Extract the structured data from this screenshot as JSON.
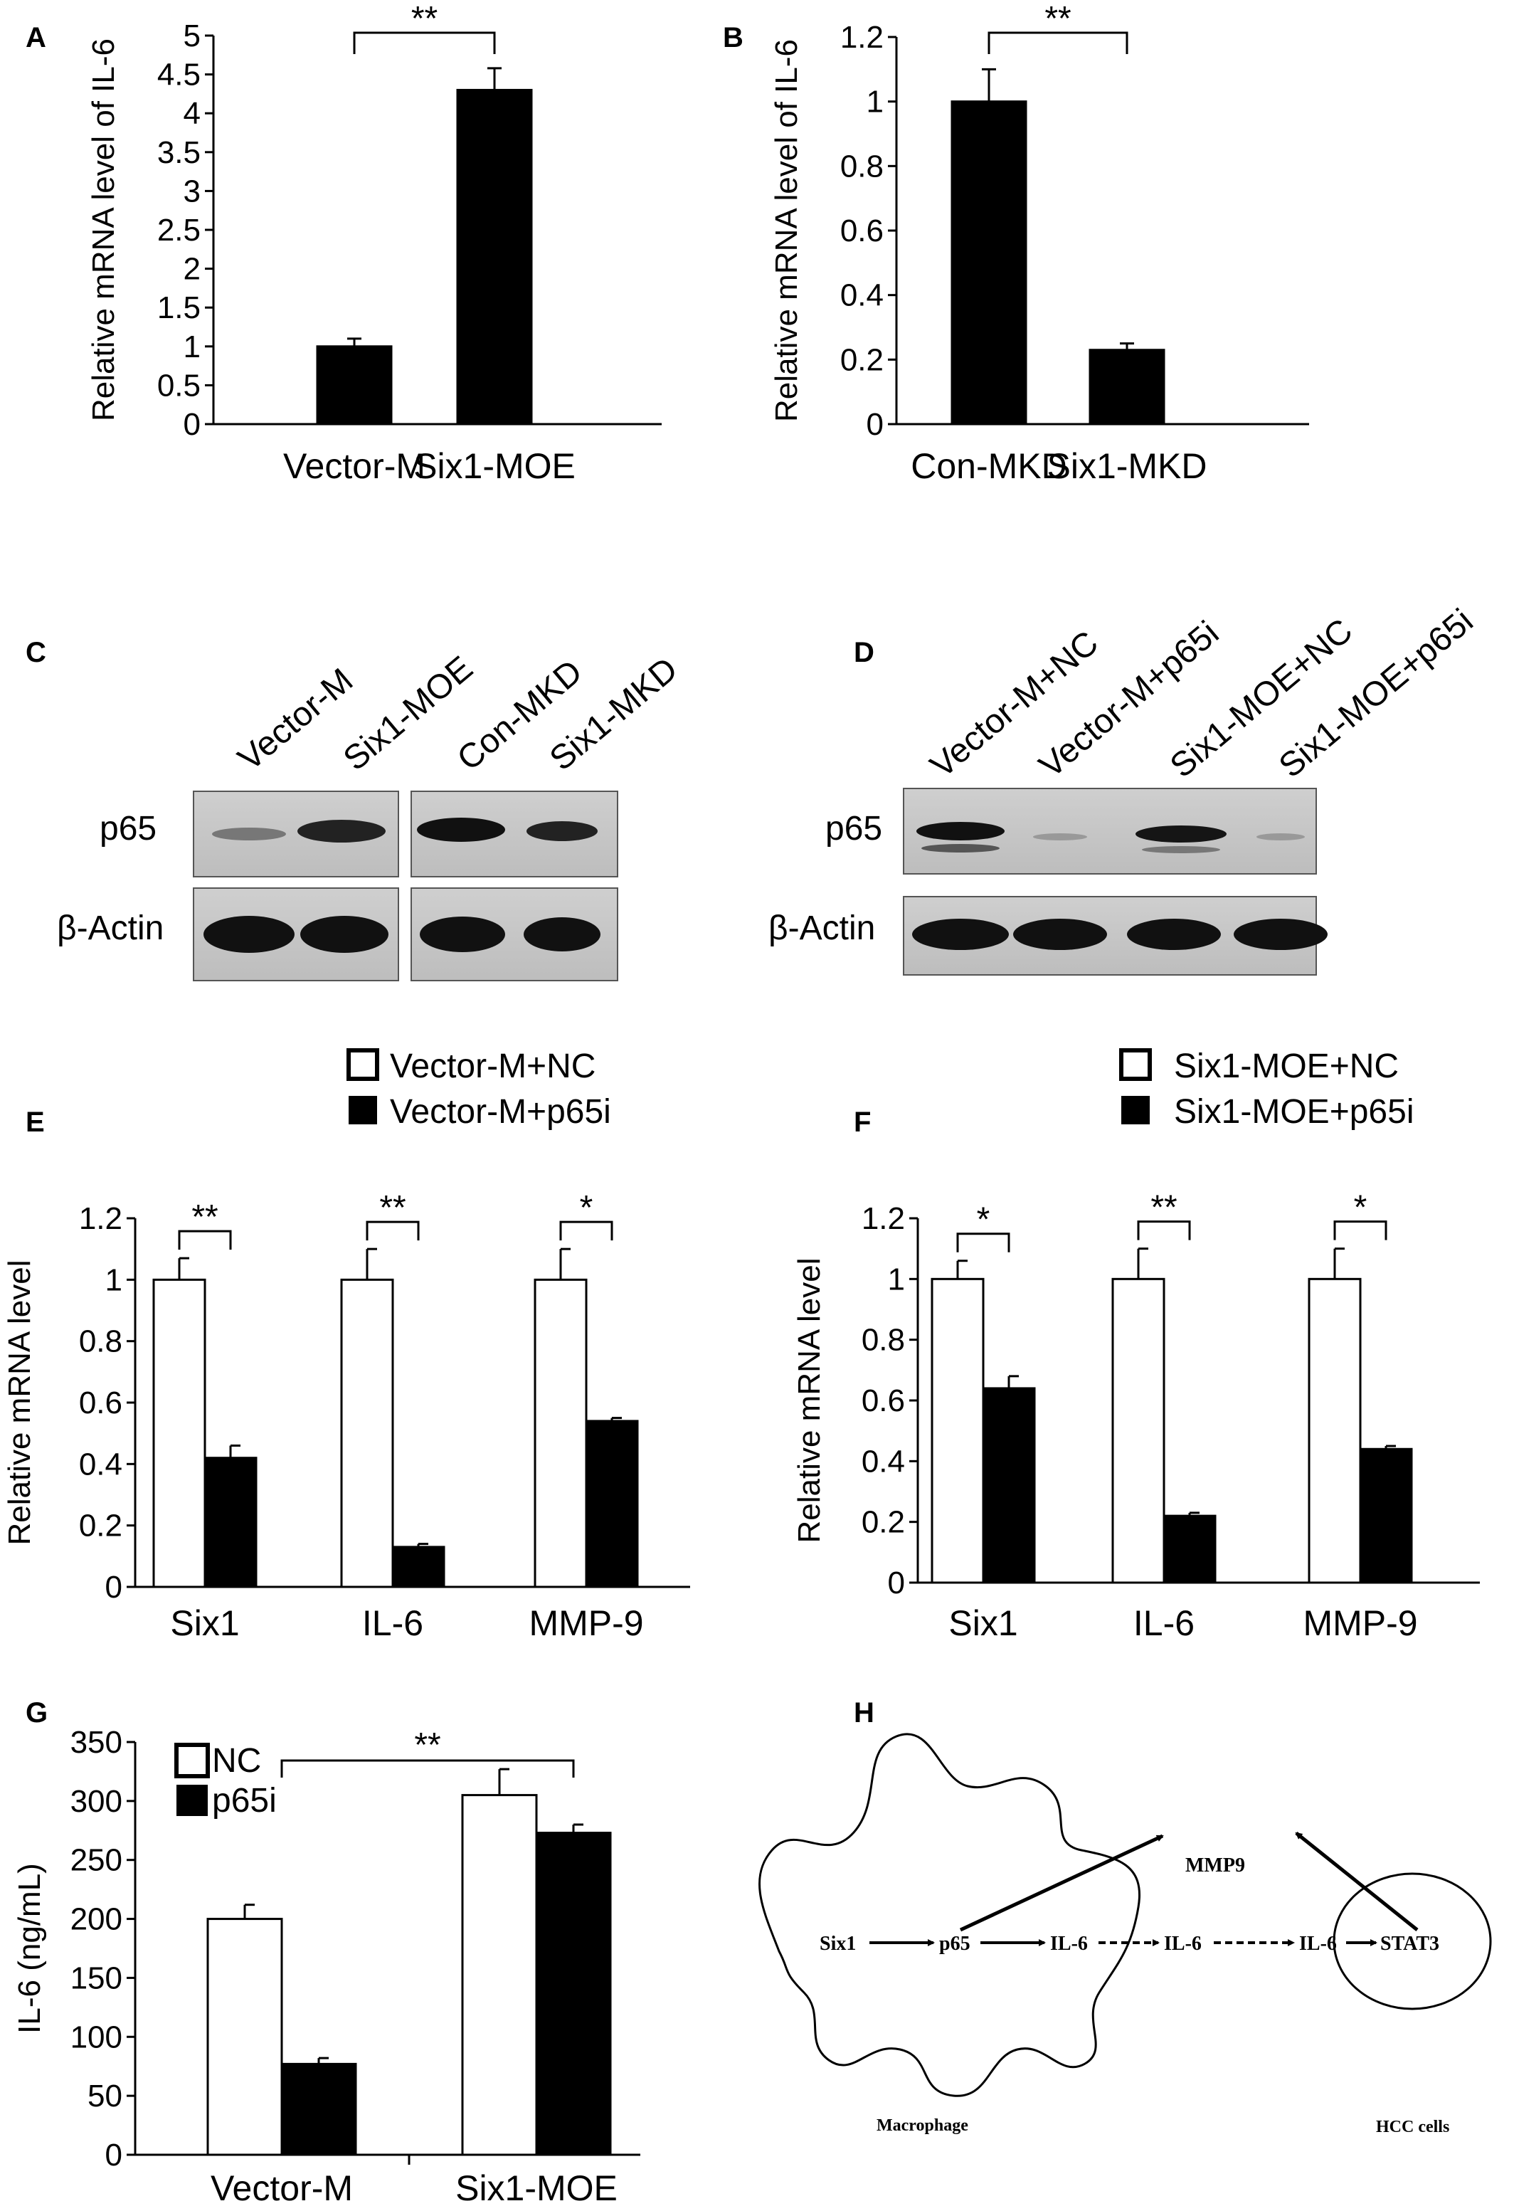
{
  "figure": {
    "panels": [
      "A",
      "B",
      "C",
      "D",
      "E",
      "F",
      "G",
      "H"
    ]
  },
  "chart_data": [
    {
      "panel": "A",
      "type": "bar",
      "categories": [
        "Vector-M",
        "Six1-MOE"
      ],
      "values": [
        1.0,
        4.3
      ],
      "errors": [
        0.1,
        0.28
      ],
      "ylabel": "Relative mRNA level of IL-6",
      "ylim": [
        0,
        5
      ],
      "yticks": [
        "0",
        "0.5",
        "1",
        "1.5",
        "2",
        "2.5",
        "3",
        "3.5",
        "4",
        "4.5",
        "5"
      ],
      "fill": [
        "#000000",
        "#000000"
      ],
      "significance": [
        {
          "from": 0,
          "to": 1,
          "label": "**"
        }
      ]
    },
    {
      "panel": "B",
      "type": "bar",
      "categories": [
        "Con-MKD",
        "Six1-MKD"
      ],
      "values": [
        1.0,
        0.23
      ],
      "errors": [
        0.1,
        0.02
      ],
      "ylabel": "Relative mRNA level of IL-6",
      "ylim": [
        0,
        1.2
      ],
      "yticks": [
        "0",
        "0.2",
        "0.4",
        "0.6",
        "0.8",
        "1",
        "1.2"
      ],
      "fill": [
        "#000000",
        "#000000"
      ],
      "significance": [
        {
          "from": 0,
          "to": 1,
          "label": "**"
        }
      ]
    },
    {
      "panel": "E",
      "type": "bar",
      "categories": [
        "Six1",
        "IL-6",
        "MMP-9"
      ],
      "series": [
        {
          "name": "Vector-M+NC",
          "values": [
            1.0,
            1.0,
            1.0
          ],
          "errors": [
            0.07,
            0.1,
            0.1
          ],
          "color": "#ffffff"
        },
        {
          "name": "Vector-M+p65i",
          "values": [
            0.42,
            0.13,
            0.54
          ],
          "errors": [
            0.04,
            0.01,
            0.01
          ],
          "color": "#000000"
        }
      ],
      "ylabel": "Relative mRNA level",
      "ylim": [
        0,
        1.2
      ],
      "yticks": [
        "0",
        "0.2",
        "0.4",
        "0.6",
        "0.8",
        "1",
        "1.2"
      ],
      "significance": [
        {
          "group": 0,
          "label": "**"
        },
        {
          "group": 1,
          "label": "**"
        },
        {
          "group": 2,
          "label": "*"
        }
      ]
    },
    {
      "panel": "F",
      "type": "bar",
      "categories": [
        "Six1",
        "IL-6",
        "MMP-9"
      ],
      "series": [
        {
          "name": "Six1-MOE+NC",
          "values": [
            1.0,
            1.0,
            1.0
          ],
          "errors": [
            0.06,
            0.1,
            0.1
          ],
          "color": "#ffffff"
        },
        {
          "name": "Six1-MOE+p65i",
          "values": [
            0.64,
            0.22,
            0.44
          ],
          "errors": [
            0.04,
            0.01,
            0.01
          ],
          "color": "#000000"
        }
      ],
      "ylabel": "Relative mRNA level",
      "ylim": [
        0,
        1.2
      ],
      "yticks": [
        "0",
        "0.2",
        "0.4",
        "0.6",
        "0.8",
        "1",
        "1.2"
      ],
      "significance": [
        {
          "group": 0,
          "label": "*"
        },
        {
          "group": 1,
          "label": "**"
        },
        {
          "group": 2,
          "label": "*"
        }
      ]
    },
    {
      "panel": "G",
      "type": "bar",
      "categories": [
        "Vector-M",
        "Six1-MOE"
      ],
      "series": [
        {
          "name": "NC",
          "values": [
            200,
            305
          ],
          "errors": [
            12,
            22
          ],
          "color": "#ffffff"
        },
        {
          "name": "p65i",
          "values": [
            77,
            273
          ],
          "errors": [
            5,
            7
          ],
          "color": "#000000"
        }
      ],
      "ylabel": "IL-6 (ng/mL)",
      "ylim": [
        0,
        350
      ],
      "yticks": [
        "0",
        "50",
        "100",
        "150",
        "200",
        "250",
        "300",
        "350"
      ],
      "significance": [
        {
          "label": "**"
        }
      ]
    }
  ],
  "blots": {
    "C": {
      "lanes": [
        "Vector-M",
        "Six1-MOE",
        "Con-MKD",
        "Six1-MKD"
      ],
      "rows": [
        "p65",
        "β-Actin"
      ]
    },
    "D": {
      "lanes": [
        "Vector-M+NC",
        "Vector-M+p65i",
        "Six1-MOE+NC",
        "Six1-MOE+p65i"
      ],
      "rows": [
        "p65",
        "β-Actin"
      ]
    }
  },
  "diagram": {
    "nodes": {
      "six1": "Six1",
      "p65": "p65",
      "il6_a": "IL-6",
      "il6_b": "IL-6",
      "il6_c": "IL-6",
      "stat3": "STAT3",
      "mmp9": "MMP9"
    },
    "captions": {
      "macrophage": "Macrophage",
      "hcc": "HCC cells"
    }
  }
}
